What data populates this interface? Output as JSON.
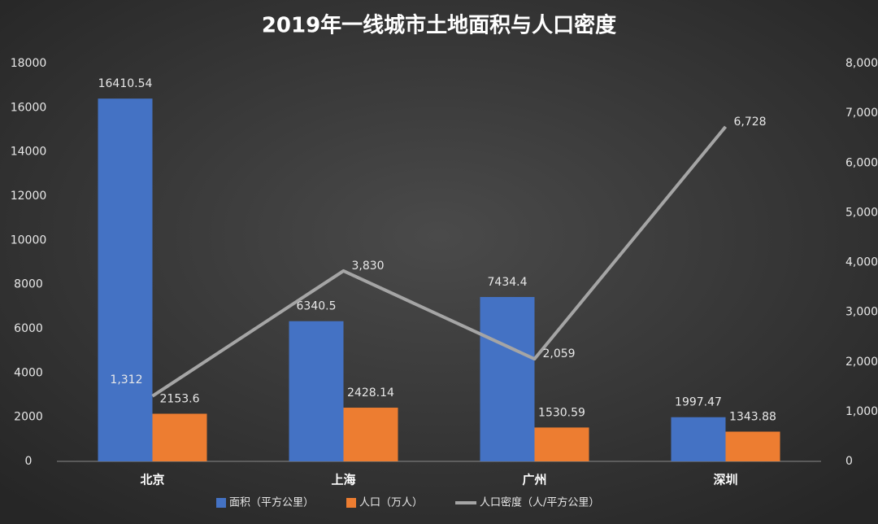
{
  "chart_data": {
    "type": "bar-line",
    "title": "2019年一线城市土地面积与人口密度",
    "categories": [
      "北京",
      "上海",
      "广州",
      "深圳"
    ],
    "series": [
      {
        "name": "面积（平方公里）",
        "type": "bar",
        "color": "#4472c4",
        "values": [
          16410.54,
          6340.5,
          7434.4,
          1997.47
        ]
      },
      {
        "name": "人口（万人）",
        "type": "bar",
        "color": "#ed7d31",
        "values": [
          2153.6,
          2428.14,
          1530.59,
          1343.88
        ]
      },
      {
        "name": "人口密度（人/平方公里）",
        "type": "line",
        "axis": "y2",
        "color": "#a5a5a5",
        "values": [
          1312,
          3830,
          2059,
          6728
        ],
        "value_labels": [
          "1,312",
          "3,830",
          "2,059",
          "6,728"
        ]
      }
    ],
    "ylim": [
      0,
      18000
    ],
    "yticks": [
      0,
      2000,
      4000,
      6000,
      8000,
      10000,
      12000,
      14000,
      16000,
      18000
    ],
    "y2lim": [
      0,
      8000
    ],
    "y2ticks": [
      0,
      {
        "value": 1000,
        "label": "1,000"
      },
      {
        "value": 2000,
        "label": "2,000"
      },
      {
        "value": 3000,
        "label": "3,000"
      },
      {
        "value": 4000,
        "label": "4,000"
      },
      {
        "value": 5000,
        "label": "5,000"
      },
      {
        "value": 6000,
        "label": "6,000"
      },
      {
        "value": 7000,
        "label": "7,000"
      },
      {
        "value": 8000,
        "label": "8,000"
      }
    ],
    "legend": "bottom"
  }
}
